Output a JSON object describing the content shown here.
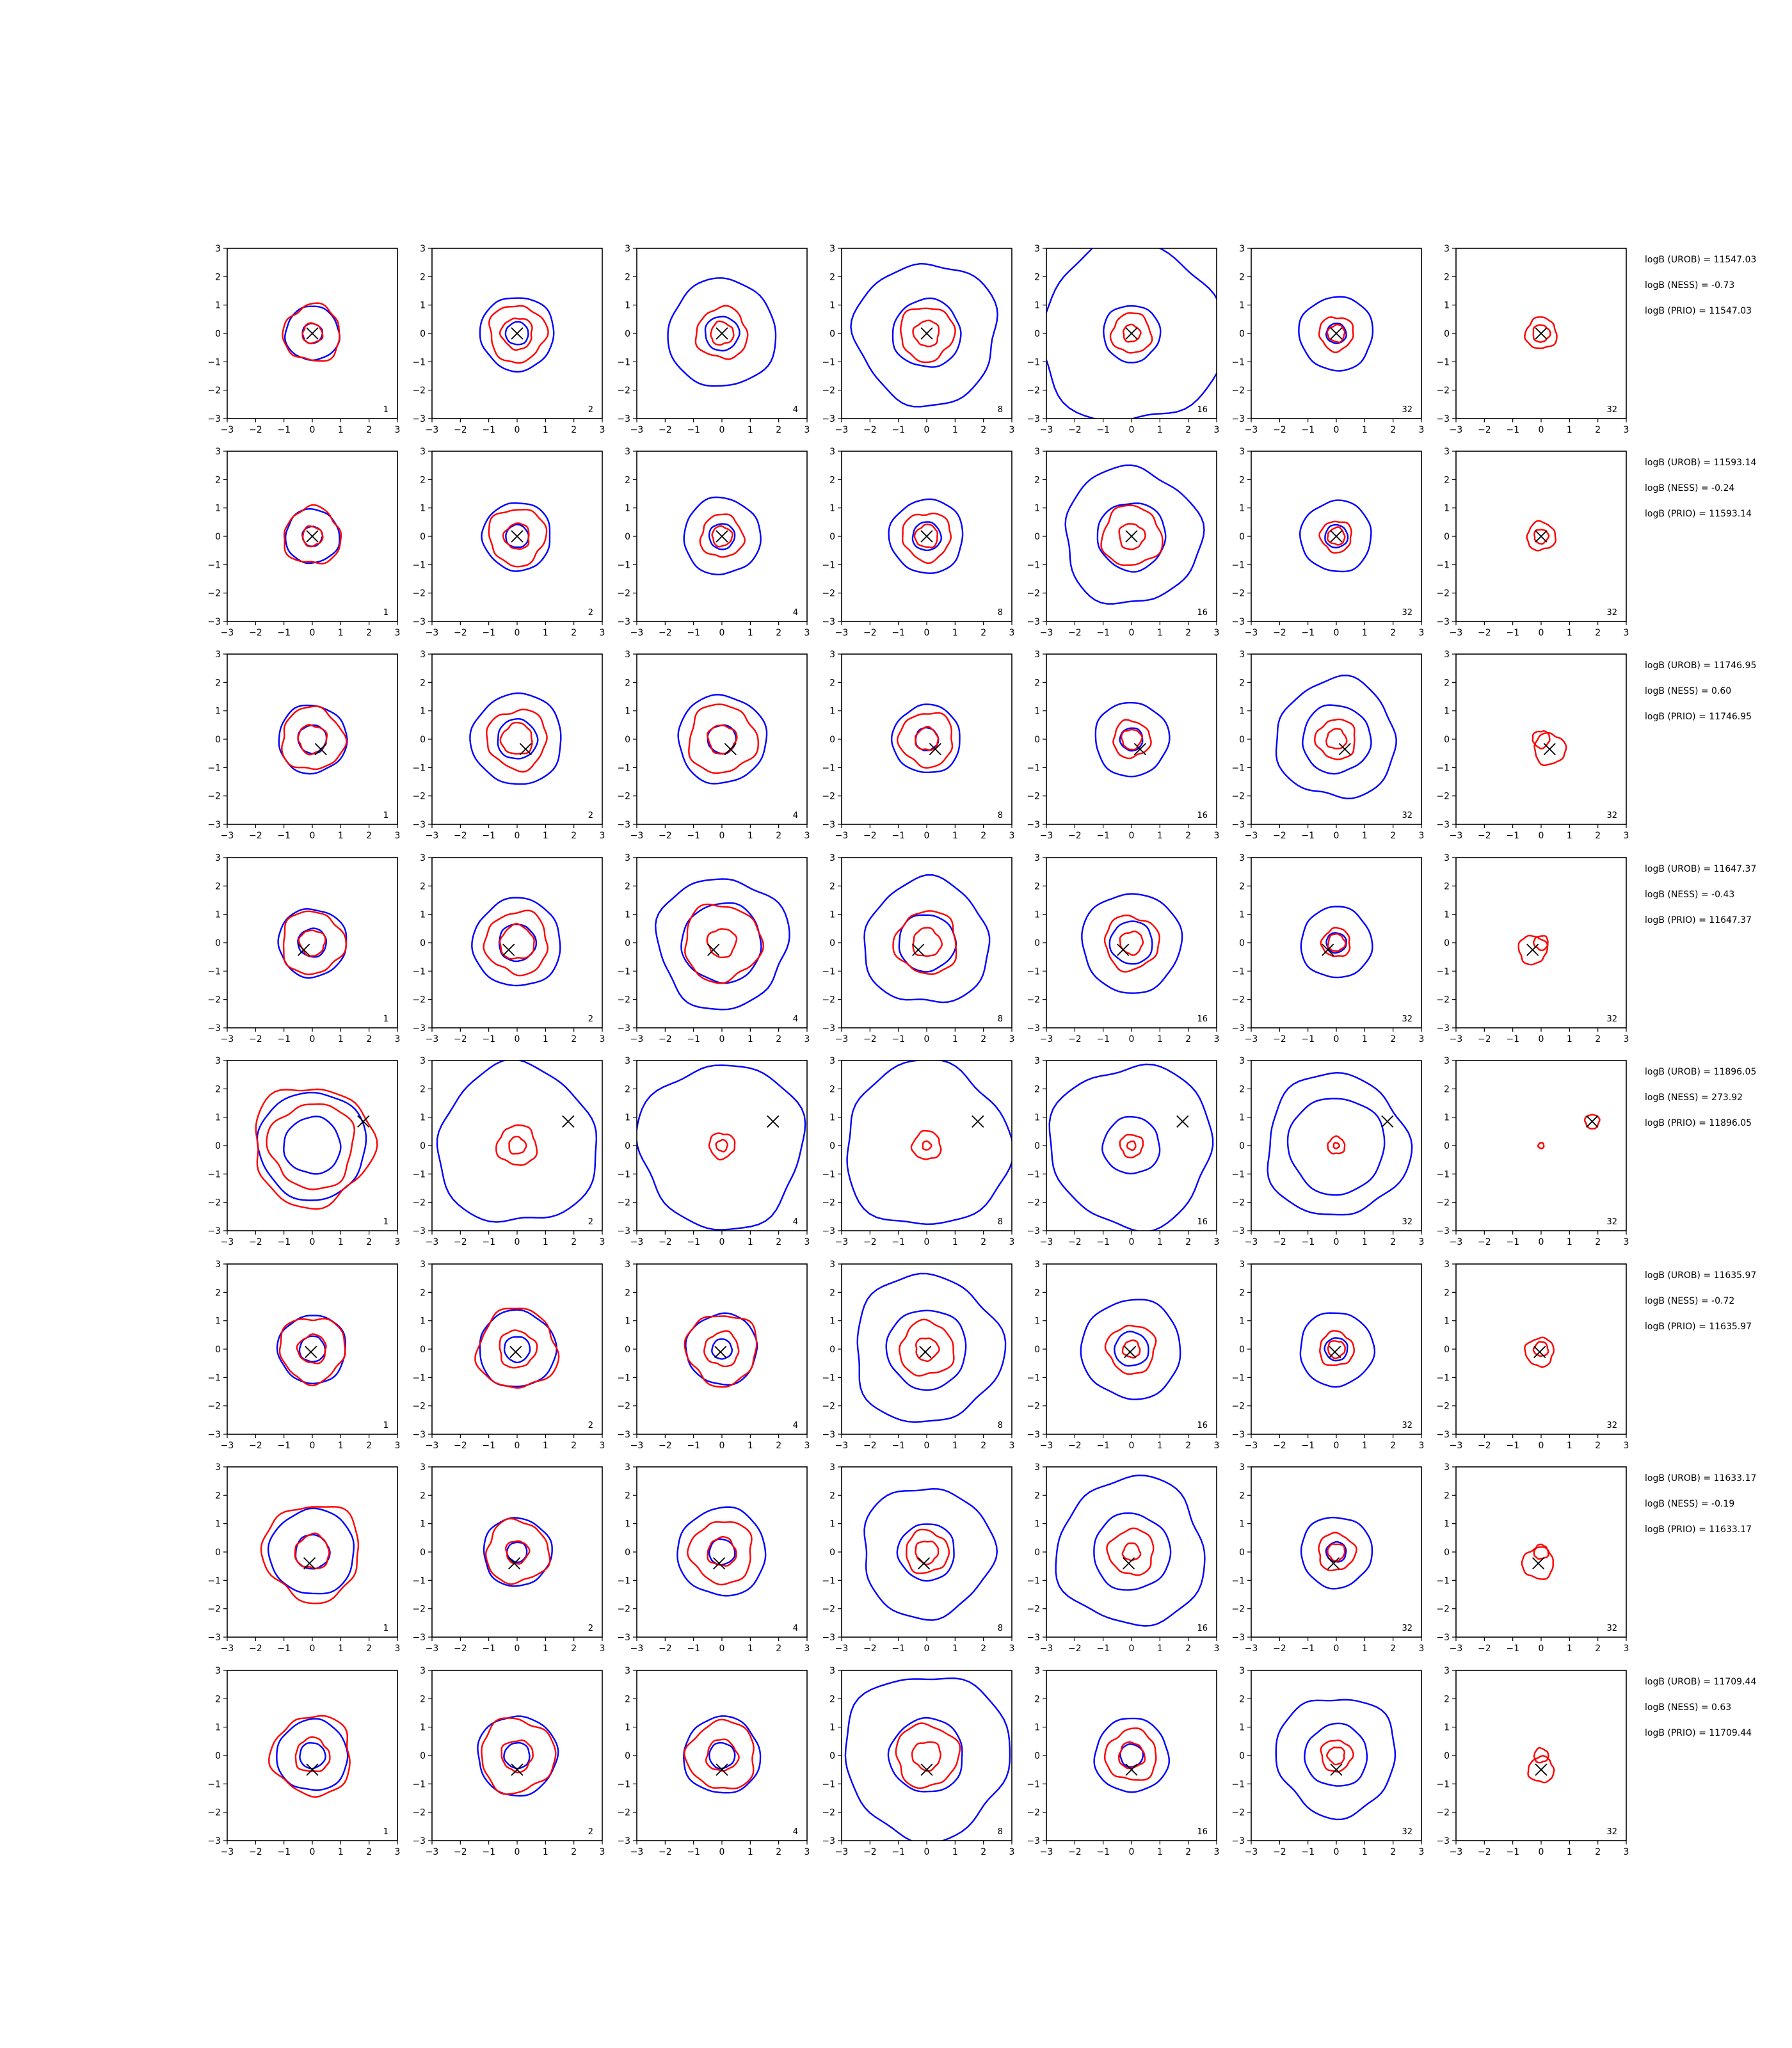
{
  "chart_data": {
    "type": "contour-grid",
    "axis": {
      "xlim": [
        -3,
        3
      ],
      "ylim": [
        -3,
        3
      ],
      "ticks": [
        "−3",
        "−2",
        "−1",
        "0",
        "1",
        "2",
        "3"
      ]
    },
    "colors": {
      "blue": "#0000ff",
      "red": "#ff0000",
      "marker": "#000000",
      "frame": "#000000"
    },
    "column_labels": [
      "1",
      "2",
      "4",
      "8",
      "16",
      "32",
      "32"
    ],
    "rows": [
      {
        "marker": [
          0.0,
          0.0
        ],
        "blue_radii": [
          [
            0.95,
            0.35
          ],
          [
            1.3,
            0.4
          ],
          [
            1.9,
            0.6
          ],
          [
            2.5,
            1.2
          ],
          [
            3.2,
            1.0
          ],
          [
            1.3,
            0.35
          ],
          []
        ],
        "red_radii": [
          [
            1.0,
            0.35
          ],
          [
            1.0,
            0.55
          ],
          [
            0.9,
            0.4
          ],
          [
            0.95,
            0.45
          ],
          [
            0.7,
            0.3
          ],
          [
            0.6,
            0.3
          ],
          [
            0.55,
            0.3
          ]
        ],
        "annotations": [
          "logB (UROB) = 11547.03",
          "logB (NESS) = -0.73",
          "logB (PRIO) = 11547.03"
        ]
      },
      {
        "marker": [
          0.0,
          0.0
        ],
        "blue_radii": [
          [
            0.95,
            0.35
          ],
          [
            1.2,
            0.4
          ],
          [
            1.35,
            0.45
          ],
          [
            1.3,
            0.5
          ],
          [
            2.4,
            1.2
          ],
          [
            1.25,
            0.4
          ],
          []
        ],
        "red_radii": [
          [
            1.0,
            0.35
          ],
          [
            1.0,
            0.45
          ],
          [
            0.75,
            0.35
          ],
          [
            0.85,
            0.4
          ],
          [
            1.05,
            0.45
          ],
          [
            0.55,
            0.3
          ],
          [
            0.5,
            0.25
          ]
        ],
        "annotations": [
          "logB (UROB) = 11593.14",
          "logB (NESS) = -0.24",
          "logB (PRIO) = 11593.14"
        ]
      },
      {
        "marker": [
          0.3,
          -0.35
        ],
        "blue_radii": [
          [
            1.2,
            0.5
          ],
          [
            1.6,
            0.7
          ],
          [
            1.55,
            0.5
          ],
          [
            1.2,
            0.4
          ],
          [
            1.3,
            0.4
          ],
          [
            2.1,
            1.2
          ],
          []
        ],
        "red_radii": [
          [
            1.1,
            0.5
          ],
          [
            1.05,
            0.55
          ],
          [
            1.2,
            0.5
          ],
          [
            0.95,
            0.4
          ],
          [
            0.65,
            0.35
          ],
          [
            0.7,
            0.35
          ],
          [
            0.55,
            0.3
          ]
        ],
        "annotations": [
          "logB (UROB) = 11746.95",
          "logB (NESS) = 0.60",
          "logB (PRIO) = 11746.95"
        ]
      },
      {
        "marker": [
          -0.3,
          -0.25
        ],
        "blue_radii": [
          [
            1.2,
            0.5
          ],
          [
            1.55,
            0.65
          ],
          [
            2.3,
            1.4
          ],
          [
            2.2,
            1.0
          ],
          [
            1.75,
            0.75
          ],
          [
            1.25,
            0.35
          ],
          []
        ],
        "red_radii": [
          [
            1.1,
            0.45
          ],
          [
            1.1,
            0.6
          ],
          [
            1.35,
            0.5
          ],
          [
            1.1,
            0.5
          ],
          [
            0.95,
            0.4
          ],
          [
            0.5,
            0.3
          ],
          [
            0.5,
            0.25
          ]
        ],
        "annotations": [
          "logB (UROB) = 11647.37",
          "logB (NESS) = -0.43",
          "logB (PRIO) = 11647.37"
        ]
      },
      {
        "marker": [
          1.8,
          0.85
        ],
        "blue_radii": [
          [
            1.9,
            1.0
          ],
          [
            2.8,
            0
          ],
          [
            2.9,
            0
          ],
          [
            2.9,
            0
          ],
          [
            2.85,
            1.0
          ],
          [
            2.5,
            1.7
          ],
          []
        ],
        "red_radii": [
          [
            2.1,
            1.5
          ],
          [
            0.7,
            0.3
          ],
          [
            0.45,
            0.2
          ],
          [
            0.5,
            0.15
          ],
          [
            0.4,
            0.15
          ],
          [
            0.3,
            0.1
          ],
          [
            0.25,
            0.1
          ]
        ],
        "annotations": [
          "logB (UROB) = 11896.05",
          "logB (NESS) = 273.92",
          "logB (PRIO) = 11896.05"
        ]
      },
      {
        "marker": [
          -0.05,
          -0.1
        ],
        "blue_radii": [
          [
            1.2,
            0.45
          ],
          [
            1.35,
            0.45
          ],
          [
            1.25,
            0.35
          ],
          [
            2.6,
            1.4
          ],
          [
            1.75,
            0.6
          ],
          [
            1.3,
            0.4
          ],
          []
        ],
        "red_radii": [
          [
            1.15,
            0.5
          ],
          [
            1.4,
            0.65
          ],
          [
            1.25,
            0.6
          ],
          [
            0.95,
            0.4
          ],
          [
            0.85,
            0.3
          ],
          [
            0.6,
            0.3
          ],
          [
            0.5,
            0.25
          ]
        ],
        "annotations": [
          "logB (UROB) = 11635.97",
          "logB (NESS) = -0.72",
          "logB (PRIO) = 11635.97"
        ]
      },
      {
        "marker": [
          -0.1,
          -0.4
        ],
        "blue_radii": [
          [
            1.5,
            0.6
          ],
          [
            1.2,
            0.35
          ],
          [
            1.55,
            0.45
          ],
          [
            2.3,
            1.0
          ],
          [
            2.6,
            1.35
          ],
          [
            1.25,
            0.35
          ],
          []
        ],
        "red_radii": [
          [
            1.7,
            0.6
          ],
          [
            1.1,
            0.4
          ],
          [
            1.1,
            0.5
          ],
          [
            0.75,
            0.4
          ],
          [
            0.8,
            0.3
          ],
          [
            0.65,
            0.3
          ],
          [
            0.55,
            0.25
          ]
        ],
        "annotations": [
          "logB (UROB) = 11633.17",
          "logB (NESS) = -0.19",
          "logB (PRIO) = 11633.17"
        ]
      },
      {
        "marker": [
          0.0,
          -0.5
        ],
        "blue_radii": [
          [
            1.25,
            0.45
          ],
          [
            1.4,
            0.45
          ],
          [
            1.35,
            0.45
          ],
          [
            2.9,
            1.3
          ],
          [
            1.3,
            0.4
          ],
          [
            2.1,
            1.1
          ],
          []
        ],
        "red_radii": [
          [
            1.4,
            0.6
          ],
          [
            1.3,
            0.55
          ],
          [
            1.2,
            0.55
          ],
          [
            1.1,
            0.5
          ],
          [
            0.9,
            0.45
          ],
          [
            0.55,
            0.3
          ],
          [
            0.45,
            0.25
          ]
        ],
        "annotations": [
          "logB (UROB) = 11709.44",
          "logB (NESS) = 0.63",
          "logB (PRIO) = 11709.44"
        ]
      }
    ]
  }
}
